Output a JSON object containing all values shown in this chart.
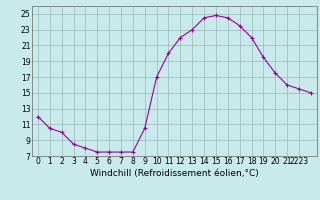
{
  "hours": [
    0,
    1,
    2,
    3,
    4,
    5,
    6,
    7,
    8,
    9,
    10,
    11,
    12,
    13,
    14,
    15,
    16,
    17,
    18,
    19,
    20,
    21,
    22,
    23
  ],
  "values": [
    12.0,
    10.5,
    10.0,
    8.5,
    8.0,
    7.5,
    7.5,
    7.5,
    7.5,
    10.5,
    17.0,
    20.0,
    22.0,
    23.0,
    24.5,
    24.8,
    24.5,
    23.5,
    22.0,
    19.5,
    17.5,
    16.0,
    15.5,
    15.0
  ],
  "line_color": "#990099",
  "marker": "+",
  "bg_color": "#c8eaea",
  "grid_color": "#9ab8b8",
  "xlabel": "Windchill (Refroidissement éolien,°C)",
  "ylim": [
    7,
    26
  ],
  "xlim": [
    -0.5,
    23.5
  ],
  "yticks": [
    7,
    9,
    11,
    13,
    15,
    17,
    19,
    21,
    23,
    25
  ],
  "tick_fontsize": 5.5,
  "xlabel_fontsize": 6.5,
  "markersize": 3,
  "linewidth": 0.8,
  "xtick_positions": [
    0,
    1,
    2,
    3,
    4,
    5,
    6,
    7,
    8,
    9,
    10,
    11,
    12,
    13,
    14,
    15,
    16,
    17,
    18,
    19,
    20,
    21,
    22
  ],
  "xtick_labels": [
    "0",
    "1",
    "2",
    "3",
    "4",
    "5",
    "6",
    "7",
    "8",
    "9",
    "10",
    "11",
    "12",
    "13",
    "14",
    "15",
    "16",
    "17",
    "18",
    "19",
    "20",
    "21",
    "2223"
  ]
}
